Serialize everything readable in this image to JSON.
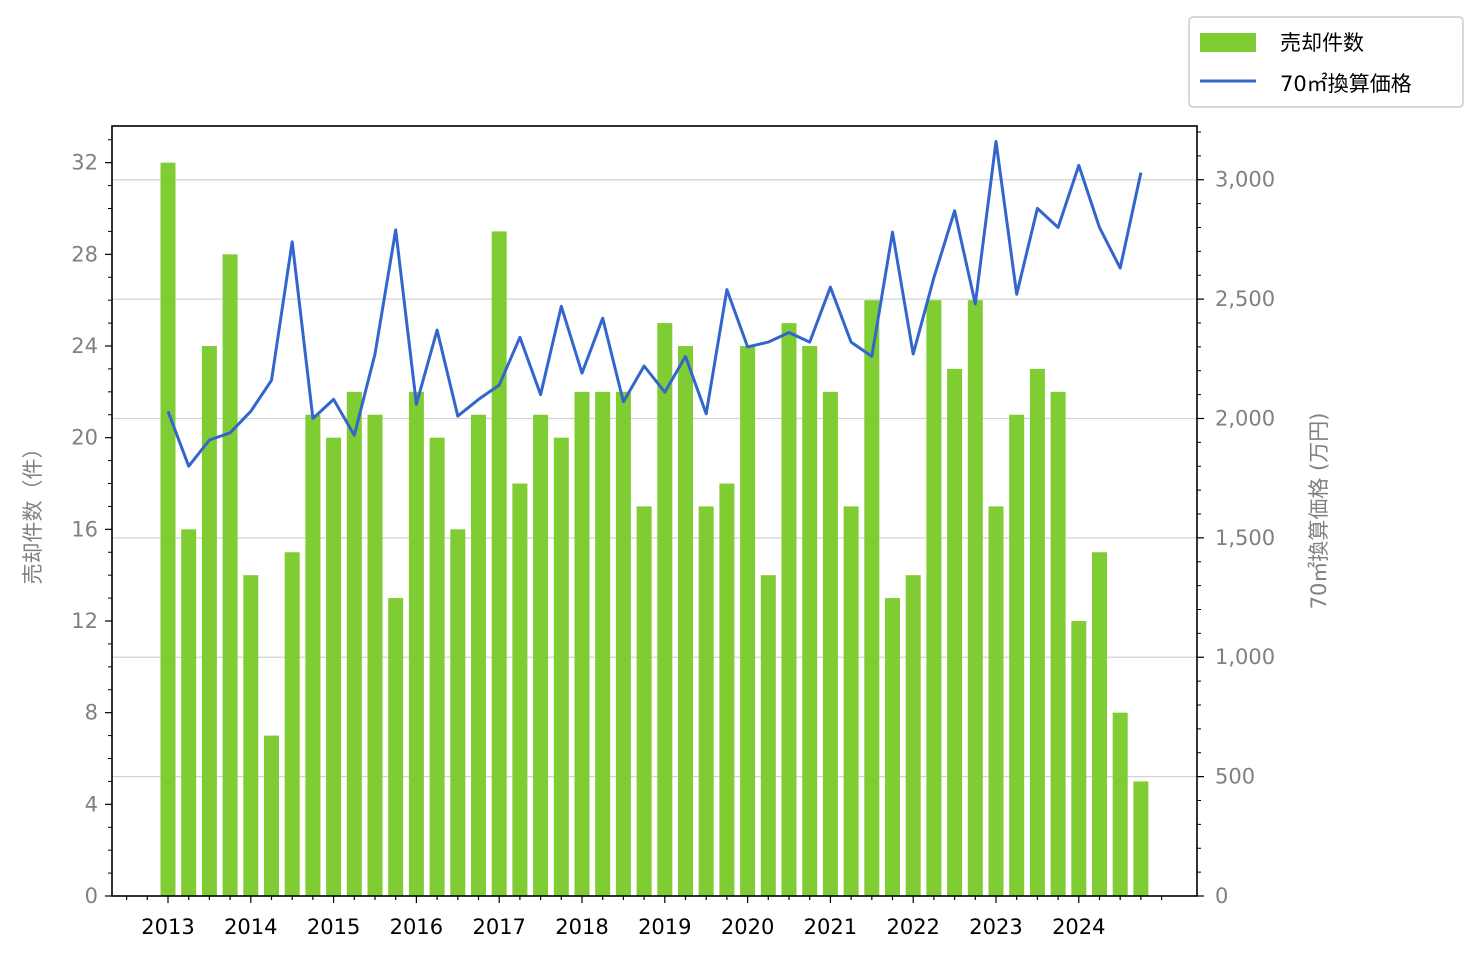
{
  "chart_data": {
    "type": "bar",
    "categories": [
      "2013Q1",
      "2013Q2",
      "2013Q3",
      "2013Q4",
      "2014Q1",
      "2014Q2",
      "2014Q3",
      "2014Q4",
      "2015Q1",
      "2015Q2",
      "2015Q3",
      "2015Q4",
      "2016Q1",
      "2016Q2",
      "2016Q3",
      "2016Q4",
      "2017Q1",
      "2017Q2",
      "2017Q3",
      "2017Q4",
      "2018Q1",
      "2018Q2",
      "2018Q3",
      "2018Q4",
      "2019Q1",
      "2019Q2",
      "2019Q3",
      "2019Q4",
      "2020Q1",
      "2020Q2",
      "2020Q3",
      "2020Q4",
      "2021Q1",
      "2021Q2",
      "2021Q3",
      "2021Q4",
      "2022Q1",
      "2022Q2",
      "2022Q3",
      "2022Q4",
      "2023Q1",
      "2023Q2",
      "2023Q3",
      "2023Q4",
      "2024Q1",
      "2024Q2",
      "2024Q3",
      "2024Q4"
    ],
    "x_tick_labels": [
      "2013",
      "2014",
      "2015",
      "2016",
      "2017",
      "2018",
      "2019",
      "2020",
      "2021",
      "2022",
      "2023",
      "2024"
    ],
    "series": [
      {
        "name": "売却件数",
        "type": "bar",
        "axis": "left",
        "color": "#80cc33",
        "values": [
          32,
          16,
          24,
          28,
          14,
          7,
          15,
          21,
          20,
          22,
          21,
          13,
          22,
          20,
          16,
          21,
          29,
          18,
          21,
          20,
          22,
          22,
          22,
          17,
          25,
          24,
          17,
          18,
          24,
          14,
          25,
          24,
          22,
          17,
          26,
          13,
          14,
          26,
          23,
          26,
          17,
          21,
          23,
          22,
          12,
          15,
          8,
          5
        ]
      },
      {
        "name": "70㎡換算価格",
        "type": "line",
        "axis": "right",
        "color": "#3366cc",
        "values": [
          2030,
          1800,
          1910,
          1940,
          2030,
          2160,
          2740,
          2000,
          2080,
          1930,
          2270,
          2790,
          2060,
          2370,
          2010,
          2080,
          2140,
          2340,
          2100,
          2470,
          2190,
          2420,
          2070,
          2220,
          2110,
          2260,
          2020,
          2540,
          2300,
          2320,
          2360,
          2320,
          2550,
          2320,
          2260,
          2780,
          2270,
          2590,
          2870,
          2480,
          3160,
          2520,
          2880,
          2800,
          3060,
          2800,
          2630,
          3030
        ]
      }
    ],
    "y_left": {
      "label": "売却件数（件）",
      "ylim": [
        0,
        33.6
      ],
      "ticks": [
        "0",
        "4",
        "8",
        "12",
        "16",
        "20",
        "24",
        "28",
        "32"
      ]
    },
    "y_right": {
      "label": "70㎡換算価格 (万円)",
      "ylim": [
        0,
        3225
      ],
      "ticks": [
        "0",
        "500",
        "1,000",
        "1,500",
        "2,000",
        "2,500",
        "3,000"
      ]
    },
    "legend": {
      "position": "top-right-outside"
    },
    "grid": "horizontal-right-axis"
  }
}
